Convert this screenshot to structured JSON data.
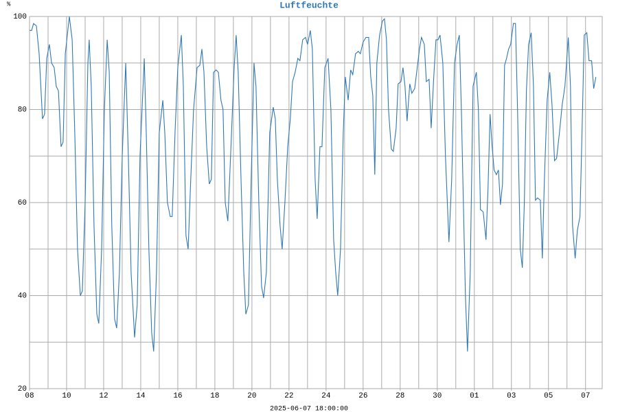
{
  "chart_data": {
    "type": "line",
    "title": "Luftfeuchte",
    "y_label": "%",
    "x_label": "2025-06-07 18:00:00",
    "xlim": [
      0,
      30.9
    ],
    "ylim": [
      20,
      100
    ],
    "xticks": [
      {
        "value": 0,
        "label": "08"
      },
      {
        "value": 2,
        "label": "10"
      },
      {
        "value": 4,
        "label": "12"
      },
      {
        "value": 6,
        "label": "14"
      },
      {
        "value": 8,
        "label": "16"
      },
      {
        "value": 10,
        "label": "18"
      },
      {
        "value": 12,
        "label": "20"
      },
      {
        "value": 14,
        "label": "22"
      },
      {
        "value": 16,
        "label": "24"
      },
      {
        "value": 18,
        "label": "26"
      },
      {
        "value": 20,
        "label": "28"
      },
      {
        "value": 22,
        "label": "30"
      },
      {
        "value": 24,
        "label": "01"
      },
      {
        "value": 26,
        "label": "03"
      },
      {
        "value": 28,
        "label": "05"
      },
      {
        "value": 30,
        "label": "07"
      }
    ],
    "yticks": [
      20,
      40,
      60,
      80,
      100
    ],
    "x_grid_ticks": [
      0,
      1,
      2,
      3,
      4,
      5,
      6,
      7,
      8,
      9,
      10,
      11,
      12,
      13,
      14,
      15,
      16,
      17,
      18,
      19,
      20,
      21,
      22,
      23,
      24,
      25,
      26,
      27,
      28,
      29,
      30
    ],
    "y_grid_ticks": [
      20,
      30,
      40,
      50,
      60,
      70,
      80,
      90,
      100
    ],
    "grid": true,
    "series": [
      {
        "color": "#2f78b5",
        "x": [
          0,
          0.11,
          0.22,
          0.37,
          0.52,
          0.7,
          0.81,
          0.93,
          1.07,
          1.19,
          1.33,
          1.44,
          1.56,
          1.7,
          1.81,
          1.93,
          2.15,
          2.3,
          2.44,
          2.59,
          2.74,
          2.85,
          3.0,
          3.15,
          3.22,
          3.33,
          3.48,
          3.63,
          3.74,
          3.89,
          4.04,
          4.19,
          4.3,
          4.44,
          4.59,
          4.7,
          4.85,
          5.0,
          5.19,
          5.33,
          5.48,
          5.67,
          5.81,
          5.96,
          6.19,
          6.3,
          6.44,
          6.59,
          6.7,
          6.85,
          7.0,
          7.19,
          7.3,
          7.44,
          7.59,
          7.7,
          7.85,
          8.0,
          8.19,
          8.3,
          8.44,
          8.56,
          8.7,
          8.85,
          9.04,
          9.19,
          9.3,
          9.41,
          9.56,
          9.7,
          9.81,
          9.93,
          10.07,
          10.19,
          10.33,
          10.44,
          10.56,
          10.7,
          10.85,
          11.04,
          11.15,
          11.26,
          11.41,
          11.56,
          11.67,
          11.81,
          11.96,
          12.11,
          12.22,
          12.37,
          12.52,
          12.63,
          12.78,
          12.96,
          13.15,
          13.26,
          13.37,
          13.52,
          13.63,
          13.78,
          13.93,
          14.07,
          14.19,
          14.33,
          14.48,
          14.59,
          14.74,
          14.89,
          15.0,
          15.15,
          15.26,
          15.41,
          15.52,
          15.67,
          15.78,
          15.93,
          16.11,
          16.26,
          16.41,
          16.52,
          16.63,
          16.78,
          16.93,
          17.04,
          17.19,
          17.33,
          17.44,
          17.59,
          17.74,
          17.85,
          18.0,
          18.15,
          18.3,
          18.41,
          18.52,
          18.63,
          18.74,
          18.89,
          19.04,
          19.15,
          19.26,
          19.37,
          19.52,
          19.63,
          19.78,
          19.89,
          20.04,
          20.15,
          20.26,
          20.37,
          20.52,
          20.63,
          20.78,
          20.89,
          21.04,
          21.15,
          21.3,
          21.41,
          21.56,
          21.67,
          21.81,
          21.93,
          22.04,
          22.15,
          22.3,
          22.44,
          22.63,
          22.78,
          22.93,
          23.07,
          23.19,
          23.3,
          23.41,
          23.52,
          23.63,
          23.78,
          23.93,
          24.11,
          24.22,
          24.33,
          24.48,
          24.63,
          24.74,
          24.85,
          24.96,
          25.07,
          25.19,
          25.3,
          25.41,
          25.52,
          25.63,
          25.74,
          25.85,
          25.96,
          26.11,
          26.22,
          26.33,
          26.48,
          26.59,
          26.7,
          26.81,
          26.93,
          27.07,
          27.19,
          27.3,
          27.41,
          27.56,
          27.67,
          27.78,
          27.93,
          28.07,
          28.19,
          28.33,
          28.44,
          28.59,
          28.74,
          28.89,
          29.07,
          29.19,
          29.3,
          29.44,
          29.56,
          29.7,
          29.81,
          29.93,
          30.07,
          30.19,
          30.33,
          30.44,
          30.56
        ],
        "values": [
          97,
          97,
          98.5,
          98,
          92,
          78,
          79,
          91,
          94,
          90,
          89,
          85,
          84,
          72,
          73,
          92,
          100,
          95,
          75,
          50,
          40,
          41,
          60,
          90,
          95,
          85,
          55,
          36,
          34,
          50,
          80,
          95,
          88,
          55,
          35,
          33,
          45,
          70,
          90,
          70,
          45,
          31,
          38,
          70,
          91,
          75,
          50,
          32,
          28,
          45,
          75,
          82,
          75,
          60,
          57,
          57,
          75,
          89,
          96,
          85,
          53,
          50,
          65,
          80,
          89,
          89.5,
          93,
          88,
          72,
          64,
          65,
          88,
          88.5,
          88,
          82,
          80,
          60,
          56,
          70,
          89,
          96,
          88,
          65,
          45,
          36,
          38,
          65,
          90,
          85,
          60,
          42,
          39.5,
          45,
          75,
          80.5,
          78,
          65,
          55,
          50,
          60,
          72,
          78,
          86,
          88,
          91,
          90.5,
          95,
          95.5,
          94,
          97,
          93,
          65,
          56.5,
          72,
          72,
          89,
          91,
          80,
          52,
          45,
          40,
          50,
          75,
          87,
          82,
          88.5,
          87.5,
          92,
          92.5,
          92,
          94.5,
          95.5,
          95.5,
          87,
          83,
          66,
          90,
          96,
          99,
          99.5,
          95,
          80,
          71.5,
          71,
          76,
          85.5,
          86,
          89,
          85,
          77.5,
          85.5,
          83.5,
          84.5,
          88,
          93,
          95.5,
          94,
          86,
          86.5,
          76,
          87,
          95,
          95,
          96,
          90,
          70,
          51.5,
          65,
          90,
          94,
          96,
          80,
          60,
          40,
          28,
          45,
          85,
          88,
          80,
          58.5,
          58,
          52,
          63,
          79,
          72,
          67,
          66,
          67,
          59.5,
          64,
          89.5,
          91,
          93,
          94,
          98.5,
          98.5,
          80,
          50,
          46,
          60,
          84,
          94,
          96.5,
          85,
          60.5,
          61,
          60.5,
          48,
          65,
          82,
          88,
          81,
          69,
          69.5,
          75,
          81,
          85,
          95.5,
          85,
          55,
          48,
          54,
          57,
          75,
          96,
          96.5,
          90.5,
          90.5,
          84.5,
          87
        ]
      }
    ]
  }
}
